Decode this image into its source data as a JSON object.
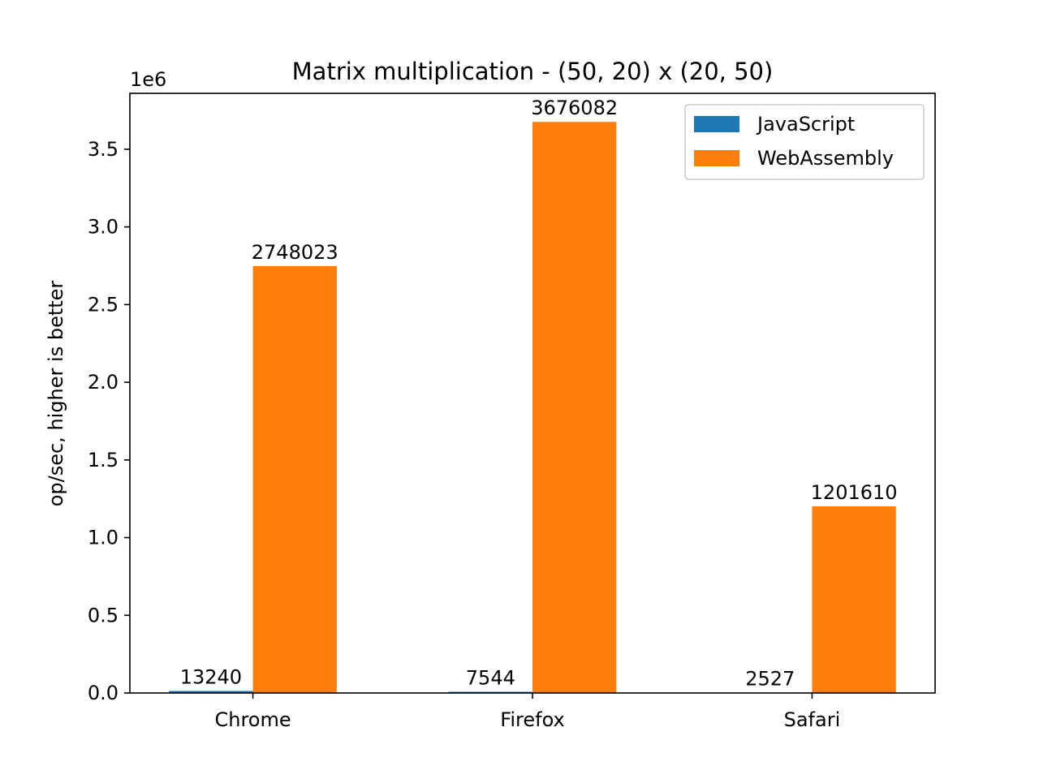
{
  "chart_data": {
    "type": "bar",
    "title": "Matrix multiplication - (50, 20) x (20, 50)",
    "xlabel": "",
    "ylabel": "op/sec, higher is better",
    "y_offset_label": "1e6",
    "categories": [
      "Chrome",
      "Firefox",
      "Safari"
    ],
    "series": [
      {
        "name": "JavaScript",
        "color": "#1f77b4",
        "values": [
          13240,
          7544,
          2527
        ],
        "labels": [
          "13240",
          "7544",
          "2527"
        ]
      },
      {
        "name": "WebAssembly",
        "color": "#ff7f0e",
        "values": [
          2748023,
          3676082,
          1201610
        ],
        "labels": [
          "2748023",
          "3676082",
          "1201610"
        ]
      }
    ],
    "ylim": [
      0,
      3860000
    ],
    "yticks": [
      0,
      500000,
      1000000,
      1500000,
      2000000,
      2500000,
      3000000,
      3500000
    ],
    "ytick_labels": [
      "0.0",
      "0.5",
      "1.0",
      "1.5",
      "2.0",
      "2.5",
      "3.0",
      "3.5"
    ],
    "legend_position": "top-right",
    "grid": false
  }
}
